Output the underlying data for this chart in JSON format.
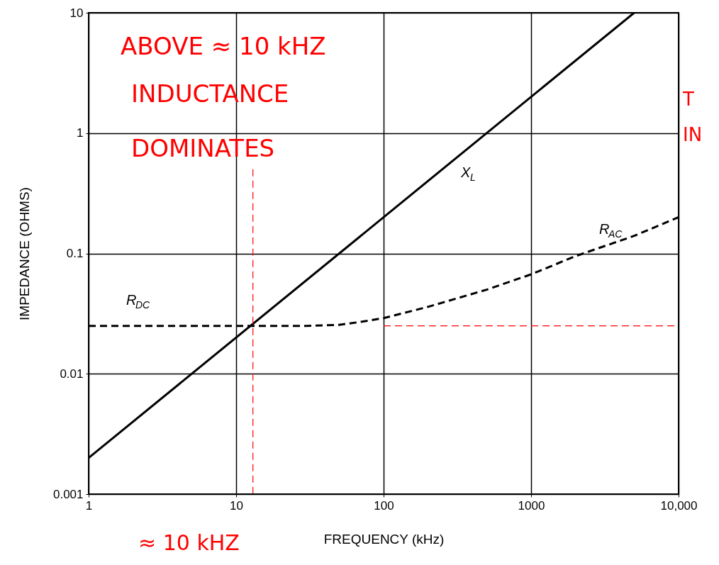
{
  "chart_data": {
    "type": "line",
    "xlabel": "FREQUENCY (kHz)",
    "ylabel": "IMPEDANCE (OHMS)",
    "log": "xy",
    "grid": true,
    "xlim": [
      1,
      10000
    ],
    "ylim": [
      0.001,
      10
    ],
    "xticks": [
      1,
      10,
      100,
      1000,
      {
        "value": 10000,
        "label": "10,000"
      }
    ],
    "yticks": [
      0.001,
      0.01,
      0.1,
      1,
      10
    ],
    "series": [
      {
        "name": "X$_{L}$",
        "color": "#000000",
        "line_style": "solid",
        "x": [
          1,
          5000
        ],
        "values": [
          0.002,
          10
        ]
      },
      {
        "name": "R$_{AC}$",
        "color": "#000000",
        "line_style": "dashed",
        "x": [
          1,
          10,
          30,
          50,
          70,
          100,
          200,
          500,
          1000,
          2000,
          5000,
          10000
        ],
        "values": [
          0.025,
          0.025,
          0.025,
          0.0255,
          0.027,
          0.029,
          0.036,
          0.05,
          0.067,
          0.095,
          0.14,
          0.2
        ]
      },
      {
        "color": "#ff0000",
        "line_style": "dashed",
        "x": [
          100,
          10000
        ],
        "values": [
          0.025,
          0.025
        ]
      },
      {
        "color": "#ff0000",
        "line_style": "dashed",
        "x": [
          13,
          13
        ],
        "values": [
          0.5,
          0.001
        ]
      }
    ],
    "annotations": [
      "R$_{DC}$",
      "ABOVE ≈ 10 kHZ",
      "INDUCTANCE",
      "DOMINATES",
      "≈ 10 kHZ",
      "T",
      "IN"
    ]
  }
}
